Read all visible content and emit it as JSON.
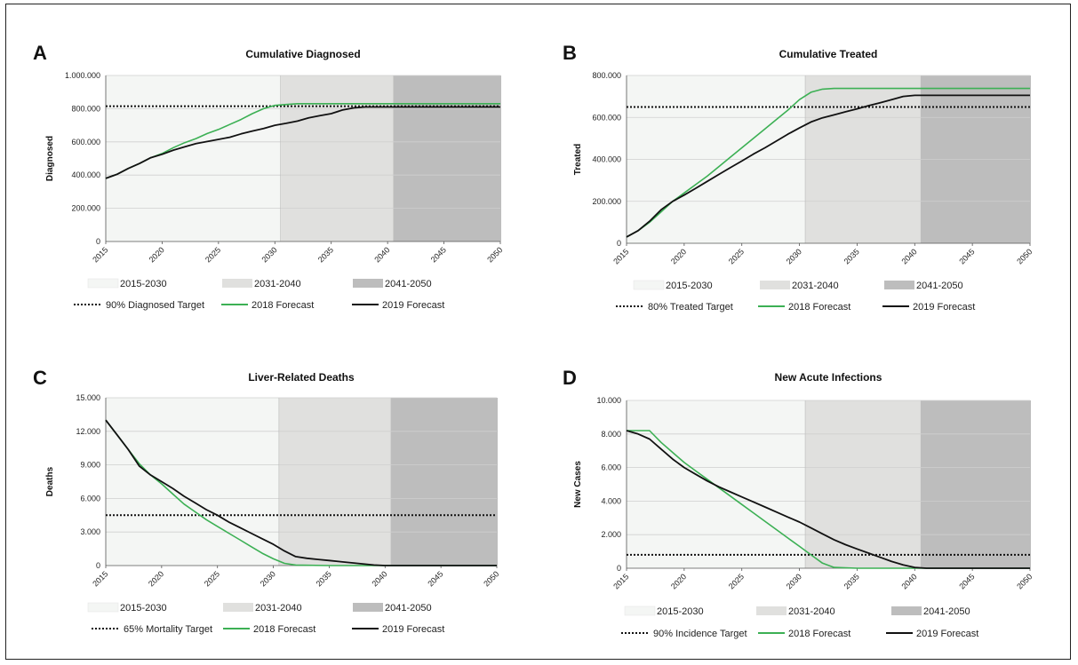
{
  "chart_data": [
    {
      "panel": "A",
      "type": "line",
      "title": "Cumulative Diagnosed",
      "ylabel": "Diagnosed",
      "xlim": [
        2015,
        2050
      ],
      "ylim": [
        0,
        1000000
      ],
      "yticks": [
        0,
        200000,
        400000,
        600000,
        800000,
        1000000
      ],
      "ytick_labels": [
        "0",
        "200.000",
        "400.000",
        "600.000",
        "800.000",
        "1.000.000"
      ],
      "xticks": [
        2015,
        2020,
        2025,
        2030,
        2035,
        2040,
        2045,
        2050
      ],
      "xtick_labels": [
        "2015",
        "2020",
        "2025",
        "2030",
        "2035",
        "2040",
        "2045",
        "2050"
      ],
      "shaded_periods": [
        {
          "name": "2015-2030",
          "from": 2015,
          "to": 2030.5,
          "color": "#f4f6f4"
        },
        {
          "name": "2031-2040",
          "from": 2030.5,
          "to": 2040.5,
          "color": "#e0e0de"
        },
        {
          "name": "2041-2050",
          "from": 2040.5,
          "to": 2050.2,
          "color": "#bdbdbd"
        }
      ],
      "target": {
        "name": "90% Diagnosed Target",
        "value": 815000
      },
      "series": [
        {
          "name": "2018 Forecast",
          "color": "#3cb054",
          "x": [
            2015,
            2016,
            2017,
            2018,
            2019,
            2020,
            2021,
            2022,
            2023,
            2024,
            2025,
            2026,
            2027,
            2028,
            2029,
            2030,
            2031,
            2032,
            2033,
            2035,
            2040,
            2050
          ],
          "y": [
            380000,
            405000,
            440000,
            470000,
            505000,
            530000,
            565000,
            595000,
            620000,
            650000,
            675000,
            705000,
            735000,
            770000,
            800000,
            820000,
            825000,
            830000,
            830000,
            830000,
            830000,
            830000
          ]
        },
        {
          "name": "2019 Forecast",
          "color": "#111111",
          "x": [
            2015,
            2016,
            2017,
            2018,
            2019,
            2020,
            2021,
            2022,
            2023,
            2024,
            2025,
            2026,
            2027,
            2028,
            2029,
            2030,
            2031,
            2032,
            2033,
            2034,
            2035,
            2036,
            2037,
            2038,
            2039,
            2040,
            2050
          ],
          "y": [
            380000,
            405000,
            440000,
            470000,
            505000,
            525000,
            550000,
            570000,
            590000,
            602000,
            615000,
            628000,
            648000,
            665000,
            680000,
            700000,
            712000,
            725000,
            745000,
            758000,
            770000,
            792000,
            805000,
            810000,
            810000,
            810000,
            810000
          ]
        }
      ],
      "legend": [
        "2015-2030",
        "2031-2040",
        "2041-2050",
        "90% Diagnosed Target",
        "2018 Forecast",
        "2019 Forecast"
      ]
    },
    {
      "panel": "B",
      "type": "line",
      "title": "Cumulative Treated",
      "ylabel": "Treated",
      "xlim": [
        2015,
        2050
      ],
      "ylim": [
        0,
        800000
      ],
      "yticks": [
        0,
        200000,
        400000,
        600000,
        800000
      ],
      "ytick_labels": [
        "0",
        "200.000",
        "400.000",
        "600.000",
        "800.000"
      ],
      "xticks": [
        2015,
        2020,
        2025,
        2030,
        2035,
        2040,
        2045,
        2050
      ],
      "xtick_labels": [
        "2015",
        "2020",
        "2025",
        "2030",
        "2035",
        "2040",
        "2045",
        "2050"
      ],
      "shaded_periods": [
        {
          "name": "2015-2030",
          "from": 2015,
          "to": 2030.5,
          "color": "#f4f6f4"
        },
        {
          "name": "2031-2040",
          "from": 2030.5,
          "to": 2040.5,
          "color": "#e0e0de"
        },
        {
          "name": "2041-2050",
          "from": 2040.5,
          "to": 2050.2,
          "color": "#bdbdbd"
        }
      ],
      "target": {
        "name": "80% Treated Target",
        "value": 650000
      },
      "series": [
        {
          "name": "2018 Forecast",
          "color": "#3cb054",
          "x": [
            2015,
            2016,
            2017,
            2018,
            2019,
            2020,
            2021,
            2022,
            2023,
            2024,
            2025,
            2026,
            2027,
            2028,
            2029,
            2030,
            2031,
            2032,
            2033,
            2035,
            2040,
            2050
          ],
          "y": [
            30000,
            60000,
            100000,
            150000,
            200000,
            240000,
            280000,
            320000,
            365000,
            410000,
            455000,
            500000,
            545000,
            590000,
            635000,
            685000,
            720000,
            735000,
            738000,
            738000,
            738000,
            738000
          ]
        },
        {
          "name": "2019 Forecast",
          "color": "#111111",
          "x": [
            2015,
            2016,
            2017,
            2018,
            2019,
            2020,
            2021,
            2022,
            2023,
            2024,
            2025,
            2026,
            2027,
            2028,
            2029,
            2030,
            2031,
            2032,
            2033,
            2034,
            2035,
            2036,
            2037,
            2038,
            2039,
            2040,
            2050
          ],
          "y": [
            30000,
            60000,
            105000,
            160000,
            200000,
            230000,
            262000,
            295000,
            328000,
            360000,
            392000,
            425000,
            455000,
            487000,
            520000,
            550000,
            578000,
            598000,
            612000,
            627000,
            641000,
            656000,
            670000,
            685000,
            700000,
            705000,
            705000
          ]
        }
      ],
      "legend": [
        "2015-2030",
        "2031-2040",
        "2041-2050",
        "80% Treated Target",
        "2018 Forecast",
        "2019 Forecast"
      ]
    },
    {
      "panel": "C",
      "type": "line",
      "title": "Liver-Related Deaths",
      "ylabel": "Deaths",
      "xlim": [
        2015,
        2050
      ],
      "ylim": [
        0,
        15000
      ],
      "yticks": [
        0,
        3000,
        6000,
        9000,
        12000,
        15000
      ],
      "ytick_labels": [
        "0",
        "3.000",
        "6.000",
        "9.000",
        "12.000",
        "15.000"
      ],
      "xticks": [
        2015,
        2020,
        2025,
        2030,
        2035,
        2040,
        2045,
        2050
      ],
      "xtick_labels": [
        "2015",
        "2020",
        "2025",
        "2030",
        "2035",
        "2040",
        "2045",
        "2050"
      ],
      "shaded_periods": [
        {
          "name": "2015-2030",
          "from": 2015,
          "to": 2030.5,
          "color": "#f4f6f4"
        },
        {
          "name": "2031-2040",
          "from": 2030.5,
          "to": 2040.5,
          "color": "#e0e0de"
        },
        {
          "name": "2041-2050",
          "from": 2040.5,
          "to": 2050.2,
          "color": "#bdbdbd"
        }
      ],
      "target": {
        "name": "65% Mortality Target",
        "value": 4500
      },
      "series": [
        {
          "name": "2018 Forecast",
          "color": "#3cb054",
          "x": [
            2015,
            2016,
            2017,
            2018,
            2019,
            2020,
            2021,
            2022,
            2023,
            2024,
            2025,
            2026,
            2027,
            2028,
            2029,
            2030,
            2031,
            2032,
            2035,
            2040,
            2050
          ],
          "y": [
            13000,
            11700,
            10400,
            9100,
            8100,
            7300,
            6400,
            5500,
            4800,
            4100,
            3500,
            2900,
            2300,
            1700,
            1100,
            600,
            200,
            50,
            0,
            0,
            0
          ]
        },
        {
          "name": "2019 Forecast",
          "color": "#111111",
          "x": [
            2015,
            2016,
            2017,
            2018,
            2019,
            2020,
            2021,
            2022,
            2023,
            2024,
            2025,
            2026,
            2027,
            2028,
            2029,
            2030,
            2031,
            2032,
            2033,
            2034,
            2035,
            2036,
            2037,
            2038,
            2039,
            2040,
            2050
          ],
          "y": [
            13000,
            11700,
            10400,
            8900,
            8100,
            7500,
            6900,
            6200,
            5600,
            5000,
            4500,
            3900,
            3400,
            2900,
            2400,
            1900,
            1300,
            800,
            650,
            550,
            450,
            350,
            250,
            150,
            50,
            0,
            0
          ]
        }
      ],
      "legend": [
        "2015-2030",
        "2031-2040",
        "2041-2050",
        "65% Mortality Target",
        "2018 Forecast",
        "2019 Forecast"
      ]
    },
    {
      "panel": "D",
      "type": "line",
      "title": "New Acute Infections",
      "ylabel": "New Cases",
      "xlim": [
        2015,
        2050
      ],
      "ylim": [
        0,
        10000
      ],
      "yticks": [
        0,
        2000,
        4000,
        6000,
        8000,
        10000
      ],
      "ytick_labels": [
        "0",
        "2.000",
        "4.000",
        "6.000",
        "8.000",
        "10.000"
      ],
      "xticks": [
        2015,
        2020,
        2025,
        2030,
        2035,
        2040,
        2045,
        2050
      ],
      "xtick_labels": [
        "2015",
        "2020",
        "2025",
        "2030",
        "2035",
        "2040",
        "2045",
        "2050"
      ],
      "shaded_periods": [
        {
          "name": "2015-2030",
          "from": 2015,
          "to": 2030.5,
          "color": "#f4f6f4"
        },
        {
          "name": "2031-2040",
          "from": 2030.5,
          "to": 2040.5,
          "color": "#e0e0de"
        },
        {
          "name": "2041-2050",
          "from": 2040.5,
          "to": 2050.2,
          "color": "#bdbdbd"
        }
      ],
      "target": {
        "name": "90% Incidence Target",
        "value": 800
      },
      "series": [
        {
          "name": "2018 Forecast",
          "color": "#3cb054",
          "x": [
            2015,
            2016,
            2017,
            2018,
            2019,
            2020,
            2021,
            2022,
            2023,
            2024,
            2025,
            2026,
            2027,
            2028,
            2029,
            2030,
            2031,
            2032,
            2033,
            2035,
            2040,
            2050
          ],
          "y": [
            8200,
            8200,
            8200,
            7500,
            6900,
            6300,
            5800,
            5300,
            4800,
            4300,
            3800,
            3300,
            2800,
            2300,
            1800,
            1300,
            800,
            300,
            50,
            0,
            0,
            0
          ]
        },
        {
          "name": "2019 Forecast",
          "color": "#111111",
          "x": [
            2015,
            2016,
            2017,
            2018,
            2019,
            2020,
            2021,
            2022,
            2023,
            2024,
            2025,
            2026,
            2027,
            2028,
            2029,
            2030,
            2031,
            2032,
            2033,
            2034,
            2035,
            2036,
            2037,
            2038,
            2039,
            2040,
            2041,
            2050
          ],
          "y": [
            8200,
            8000,
            7700,
            7100,
            6500,
            6000,
            5600,
            5200,
            4850,
            4550,
            4250,
            3950,
            3650,
            3350,
            3050,
            2750,
            2400,
            2050,
            1700,
            1400,
            1150,
            900,
            650,
            400,
            200,
            50,
            0,
            0
          ]
        }
      ],
      "legend": [
        "2015-2030",
        "2031-2040",
        "2041-2050",
        "90% Incidence Target",
        "2018 Forecast",
        "2019 Forecast"
      ]
    }
  ]
}
